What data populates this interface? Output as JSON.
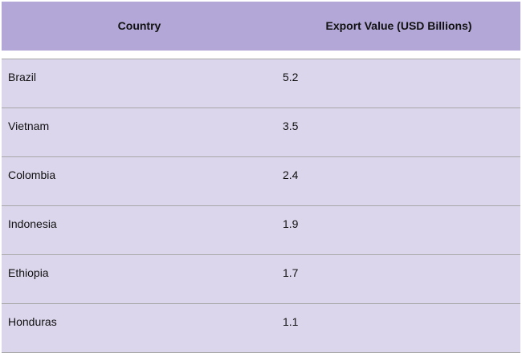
{
  "chart_data": {
    "type": "table",
    "columns": [
      "Country",
      "Export Value (USD Billions)"
    ],
    "rows": [
      {
        "country": "Brazil",
        "value": "5.2"
      },
      {
        "country": "Vietnam",
        "value": "3.5"
      },
      {
        "country": "Colombia",
        "value": "2.4"
      },
      {
        "country": "Indonesia",
        "value": "1.9"
      },
      {
        "country": "Ethiopia",
        "value": "1.7"
      },
      {
        "country": "Honduras",
        "value": "1.1"
      }
    ]
  },
  "colors": {
    "header_bg": "#b2a7d6",
    "row_bg": "#dcd6ec",
    "row_border": "#a8a8a8"
  }
}
